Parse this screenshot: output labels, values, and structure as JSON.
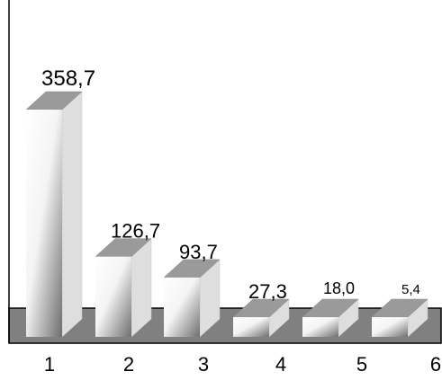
{
  "chart_data": {
    "type": "bar",
    "style": "3d",
    "categories": [
      "1",
      "2",
      "3",
      "4",
      "5",
      "6"
    ],
    "values": [
      358.7,
      126.7,
      93.7,
      27.3,
      18.0,
      5.4
    ],
    "data_labels": [
      "358,7",
      "126,7",
      "93,7",
      "27,3",
      "18,0",
      "5,4"
    ],
    "title": "",
    "xlabel": "",
    "ylabel": "",
    "grid": false,
    "legend": "none",
    "colors": {
      "floor": "#808080",
      "bar_top": "#9a9a9a",
      "bar_side": "#dedede",
      "bar_front_light": "#ffffff",
      "bar_front_dark": "#6e6e6e",
      "axis": "#000000"
    }
  }
}
